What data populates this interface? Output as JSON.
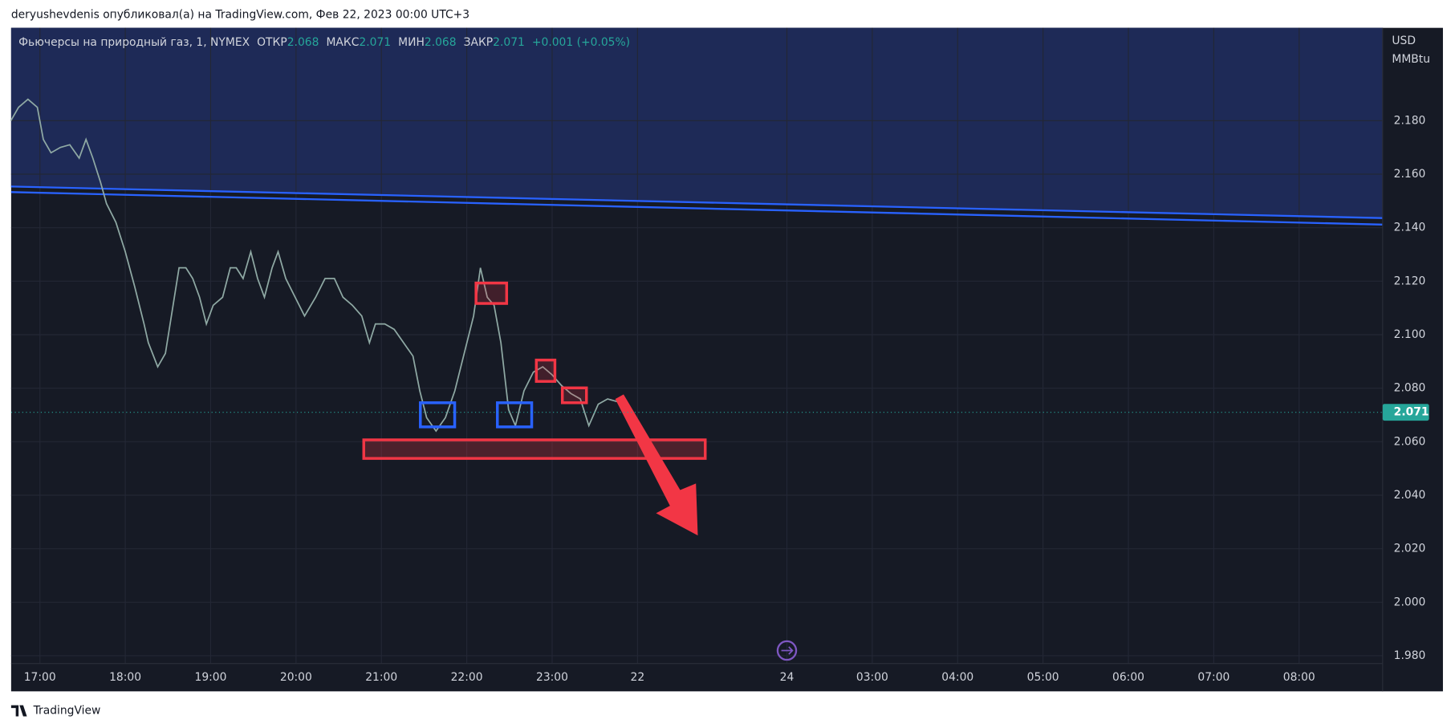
{
  "header": {
    "author_line": "deryushevdenis опубликовал(а) на TradingView.com, Фев 22, 2023 00:00 UTC+3"
  },
  "chart_data": {
    "type": "line",
    "legend": {
      "symbol": "Фьючерсы на природный газ, 1, NYMEX",
      "open_label": "ОТКР",
      "open": 2.068,
      "high_label": "МАКС",
      "high": 2.071,
      "low_label": "МИН",
      "low": 2.068,
      "close_label": "ЗАКР",
      "close": 2.071,
      "change": "+0.001 (+0.05%)"
    },
    "y_unit": [
      "USD",
      "MMBtu"
    ],
    "last_price": 2.071,
    "color": "#8fa9a4",
    "x": [
      -0.34,
      -0.25,
      -0.14,
      -0.03,
      0.04,
      0.13,
      0.24,
      0.35,
      0.46,
      0.54,
      0.62,
      0.71,
      0.78,
      0.89,
      1.0,
      1.11,
      1.22,
      1.27,
      1.38,
      1.47,
      1.55,
      1.63,
      1.71,
      1.79,
      1.87,
      1.95,
      2.03,
      2.14,
      2.23,
      2.3,
      2.38,
      2.47,
      2.55,
      2.63,
      2.72,
      2.79,
      2.88,
      2.99,
      3.1,
      3.23,
      3.34,
      3.45,
      3.55,
      3.66,
      3.77,
      3.86,
      3.93,
      4.04,
      4.15,
      4.26,
      4.37,
      4.45,
      4.53,
      4.64,
      4.75,
      4.86,
      4.97,
      5.08,
      5.16,
      5.24,
      5.32,
      5.4,
      5.49,
      5.57,
      5.67,
      5.78,
      5.89,
      6.0,
      6.11,
      6.22,
      6.33,
      6.43,
      6.54,
      6.65,
      6.76
    ],
    "values": [
      2.18,
      2.185,
      2.188,
      2.185,
      2.173,
      2.168,
      2.17,
      2.171,
      2.166,
      2.173,
      2.166,
      2.157,
      2.149,
      2.142,
      2.131,
      2.118,
      2.104,
      2.097,
      2.088,
      2.093,
      2.109,
      2.125,
      2.125,
      2.121,
      2.114,
      2.104,
      2.111,
      2.114,
      2.125,
      2.125,
      2.121,
      2.131,
      2.121,
      2.114,
      2.125,
      2.131,
      2.121,
      2.114,
      2.107,
      2.114,
      2.121,
      2.121,
      2.114,
      2.111,
      2.107,
      2.097,
      2.104,
      2.104,
      2.102,
      2.097,
      2.092,
      2.079,
      2.069,
      2.064,
      2.069,
      2.079,
      2.093,
      2.107,
      2.125,
      2.114,
      2.111,
      2.097,
      2.072,
      2.066,
      2.079,
      2.086,
      2.088,
      2.085,
      2.081,
      2.078,
      2.076,
      2.066,
      2.074,
      2.076,
      2.075
    ],
    "xlim": [
      -0.337,
      15.728
    ],
    "xticks": [
      {
        "value": 0,
        "label": "17:00"
      },
      {
        "value": 1,
        "label": "18:00"
      },
      {
        "value": 2,
        "label": "19:00"
      },
      {
        "value": 3,
        "label": "20:00"
      },
      {
        "value": 4,
        "label": "21:00"
      },
      {
        "value": 5,
        "label": "22:00"
      },
      {
        "value": 6,
        "label": "23:00"
      },
      {
        "value": 7,
        "label": "22"
      },
      {
        "value": 8.75,
        "label": "24"
      },
      {
        "value": 9.75,
        "label": "03:00"
      },
      {
        "value": 10.75,
        "label": "04:00"
      },
      {
        "value": 11.75,
        "label": "05:00"
      },
      {
        "value": 12.75,
        "label": "06:00"
      },
      {
        "value": 13.75,
        "label": "07:00"
      },
      {
        "value": 14.75,
        "label": "08:00"
      }
    ],
    "ylim": [
      1.9771,
      2.2147
    ],
    "yticks": [
      {
        "value": 1.98,
        "label": "1.980"
      },
      {
        "value": 2.0,
        "label": "2.000"
      },
      {
        "value": 2.02,
        "label": "2.020"
      },
      {
        "value": 2.04,
        "label": "2.040"
      },
      {
        "value": 2.06,
        "label": "2.060"
      },
      {
        "value": 2.08,
        "label": "2.080"
      },
      {
        "value": 2.1,
        "label": "2.100"
      },
      {
        "value": 2.12,
        "label": "2.120"
      },
      {
        "value": 2.14,
        "label": "2.140"
      },
      {
        "value": 2.16,
        "label": "2.160"
      },
      {
        "value": 2.18,
        "label": "2.180"
      }
    ],
    "grid": true
  },
  "footer": {
    "brand": "TradingView"
  }
}
